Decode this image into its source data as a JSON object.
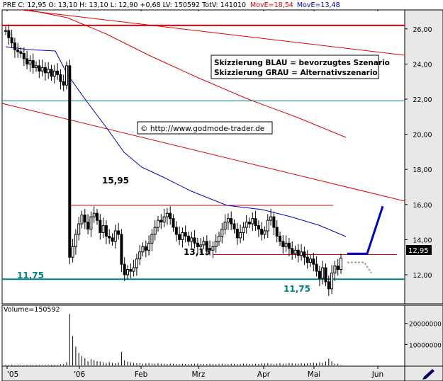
{
  "header": {
    "quote": "PRE C: 12,95 O: 13,10 H: 13,10 L: 12,90 +0,68 LV: 150592 TotV: 141010",
    "ma1_label": "MovE=18,54",
    "ma2_label": "MovE=13,48"
  },
  "annotations": {
    "box_line1": "Skizzierung BLAU = bevorzugtes Szenario",
    "box_line2": "Skizzierung GRAU = Alternativszenario",
    "copyright": "© http://www.godmode-trader.de",
    "level_1595": "15,95",
    "level_1315": "13,15",
    "level_1175_left": "11,75",
    "level_1175_right": "11,75",
    "last_price": "12,95"
  },
  "colors": {
    "background": "#ffffff",
    "axis_panel": "#e8e8e8",
    "red": "#e00000",
    "blue": "#0000cc",
    "teal": "#008080",
    "grey": "#a0a0a0",
    "candle": "#000000"
  },
  "chart_data": [
    {
      "type": "candlestick",
      "ylim": [
        10.8,
        26.8
      ],
      "yticks": [
        "12,00",
        "14,00",
        "16,00",
        "18,00",
        "20,00",
        "22,00",
        "24,00",
        "26,00"
      ],
      "ytick_values": [
        12,
        14,
        16,
        18,
        20,
        22,
        24,
        26
      ],
      "xticks": [
        "'05",
        "'06",
        "Feb",
        "Mrz",
        "Apr",
        "Mai",
        "Jun"
      ],
      "horizontal_levels": [
        {
          "value": 26.2,
          "color": "red"
        },
        {
          "value": 21.9,
          "color": "teal"
        },
        {
          "value": 11.75,
          "color": "teal"
        },
        {
          "value": 15.95,
          "color": "red"
        },
        {
          "value": 13.15,
          "color": "red"
        }
      ],
      "closes": [
        25.9,
        25.5,
        25.2,
        24.8,
        24.7,
        24.6,
        24.3,
        24.0,
        24.2,
        23.8,
        23.9,
        23.6,
        23.8,
        23.5,
        23.7,
        23.3,
        23.6,
        23.4,
        23.0,
        22.8,
        23.9,
        13.0,
        13.6,
        14.3,
        14.9,
        15.4,
        15.0,
        14.6,
        15.3,
        15.5,
        15.1,
        14.4,
        14.8,
        14.2,
        14.1,
        13.9,
        14.5,
        14.3,
        12.6,
        12.0,
        12.3,
        12.2,
        12.4,
        12.9,
        13.3,
        13.6,
        13.4,
        13.8,
        14.3,
        14.7,
        15.1,
        15.0,
        15.3,
        15.5,
        15.2,
        14.7,
        14.3,
        14.0,
        14.4,
        14.2,
        13.9,
        14.1,
        13.8,
        13.6,
        13.7,
        13.9,
        13.5,
        13.4,
        13.6,
        13.9,
        14.2,
        14.6,
        15.0,
        15.2,
        14.9,
        14.6,
        14.1,
        14.4,
        14.7,
        15.0,
        14.9,
        15.2,
        14.8,
        14.6,
        14.3,
        14.5,
        15.1,
        15.3,
        14.7,
        14.2,
        13.9,
        13.6,
        13.8,
        13.5,
        13.2,
        13.4,
        13.1,
        13.3,
        13.0,
        12.7,
        12.9,
        12.6,
        12.2,
        11.8,
        12.4,
        11.6,
        11.2,
        12.1,
        12.5,
        12.3,
        12.95
      ],
      "series": [
        {
          "name": "MovE=18,54",
          "color": "red"
        },
        {
          "name": "MovE=13,48",
          "color": "blue"
        }
      ],
      "scenario_blue": [
        [
          0,
          13.2
        ],
        [
          1,
          13.2
        ],
        [
          2,
          15.9
        ]
      ],
      "scenario_grey": [
        [
          0,
          12.7
        ],
        [
          1,
          12.7
        ],
        [
          2,
          12.1
        ]
      ]
    },
    {
      "type": "bar",
      "title": "Volume=150592",
      "yticks": [
        "20000000",
        "10000000"
      ],
      "ytick_values": [
        20000000,
        10000000
      ],
      "ylim": [
        0,
        27000000
      ],
      "values": [
        300000,
        250000,
        400000,
        200000,
        300000,
        250000,
        200000,
        350000,
        300000,
        250000,
        400000,
        300000,
        200000,
        250000,
        300000,
        350000,
        300000,
        250000,
        500000,
        600000,
        1500000,
        24500000,
        14000000,
        9000000,
        6000000,
        4500000,
        3500000,
        2000000,
        3000000,
        2500000,
        2000000,
        1800000,
        1500000,
        1200000,
        1600000,
        1200000,
        1000000,
        1400000,
        6500000,
        2500000,
        1800000,
        1500000,
        1200000,
        1000000,
        1100000,
        900000,
        1000000,
        1200000,
        900000,
        800000,
        1100000,
        900000,
        800000,
        700000,
        900000,
        800000,
        700000,
        600000,
        800000,
        700000,
        600000,
        700000,
        800000,
        900000,
        700000,
        600000,
        700000,
        800000,
        700000,
        600000,
        800000,
        900000,
        700000,
        600000,
        800000,
        700000,
        600000,
        700000,
        900000,
        800000,
        700000,
        600000,
        800000,
        700000,
        1000000,
        900000,
        1100000,
        800000,
        700000,
        900000,
        1000000,
        800000,
        900000,
        1200000,
        1000000,
        900000,
        800000,
        1100000,
        900000,
        1000000,
        1200000,
        1400000,
        1100000,
        1500000,
        1300000,
        1800000,
        3200000,
        2000000,
        900000,
        800000,
        150592
      ]
    }
  ]
}
